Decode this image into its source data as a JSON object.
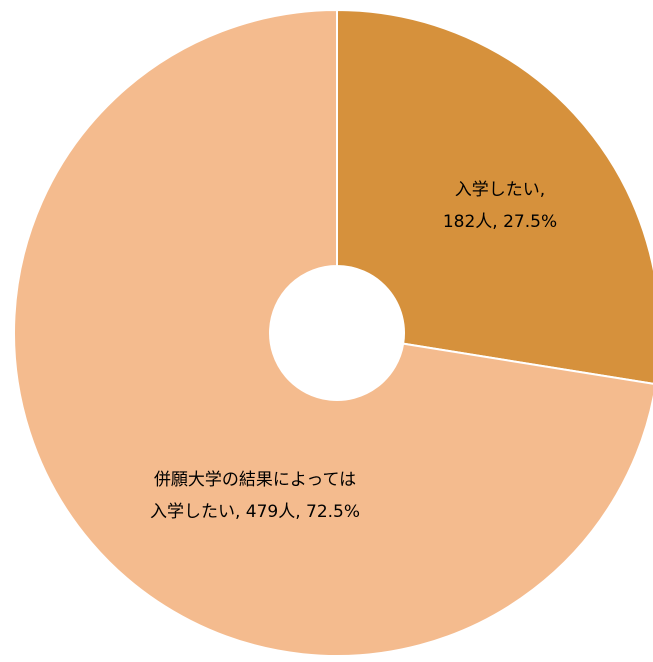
{
  "chart_data": {
    "type": "donut",
    "values": [
      182,
      479
    ],
    "value_labels": [
      [
        "入学したい,",
        "182人, 27.5%"
      ],
      [
        "併願大学の結果によっては",
        "入学したい, 479人, 72.5%"
      ]
    ],
    "colors": [
      "#d6913c",
      "#f4bb8e"
    ]
  }
}
